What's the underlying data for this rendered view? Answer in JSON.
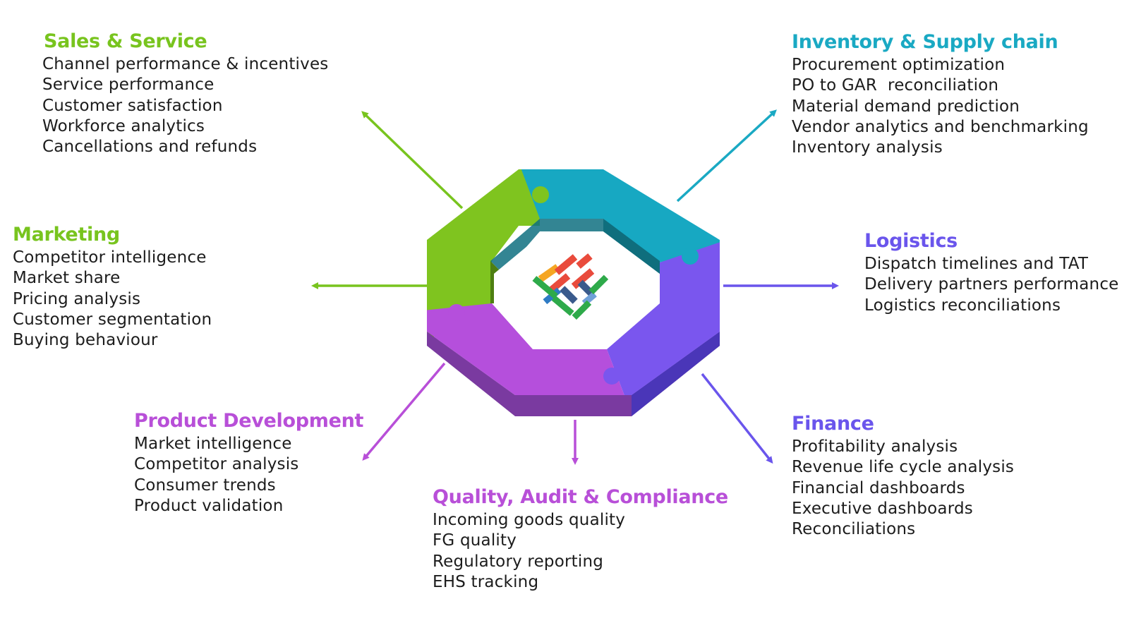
{
  "sections": {
    "sales_service": {
      "title": "Sales & Service",
      "items": [
        "Channel performance & incentives",
        "Service performance",
        "Customer satisfaction",
        "Workforce analytics",
        "Cancellations and refunds"
      ]
    },
    "marketing": {
      "title": "Marketing",
      "items": [
        "Competitor intelligence",
        "Market share",
        "Pricing analysis",
        "Customer segmentation",
        "Buying behaviour"
      ]
    },
    "product_development": {
      "title": "Product Development",
      "items": [
        "Market intelligence",
        "Competitor analysis",
        "Consumer trends",
        "Product validation"
      ]
    },
    "quality_audit_compliance": {
      "title": "Quality, Audit & Compliance",
      "items": [
        "Incoming goods quality",
        "FG quality",
        "Regulatory reporting",
        "EHS tracking"
      ]
    },
    "inventory_supply_chain": {
      "title": "Inventory & Supply chain",
      "items": [
        "Procurement optimization",
        "PO to GAR  reconciliation",
        "Material demand prediction",
        "Vendor analytics and benchmarking",
        "Inventory analysis"
      ]
    },
    "logistics": {
      "title": "Logistics",
      "items": [
        "Dispatch timelines and TAT",
        "Delivery partners performance",
        "Logistics reconciliations"
      ]
    },
    "finance": {
      "title": "Finance",
      "items": [
        "Profitability analysis",
        "Revenue life cycle analysis",
        "Financial dashboards",
        "Executive dashboards",
        "Reconciliations"
      ]
    }
  },
  "colors": {
    "green": "#78c41e",
    "teal": "#1aa9c3",
    "blue_violet": "#6a55ec",
    "purple": "#b84fd8"
  },
  "logo": {
    "icon": "woven-heart-logo-icon"
  }
}
